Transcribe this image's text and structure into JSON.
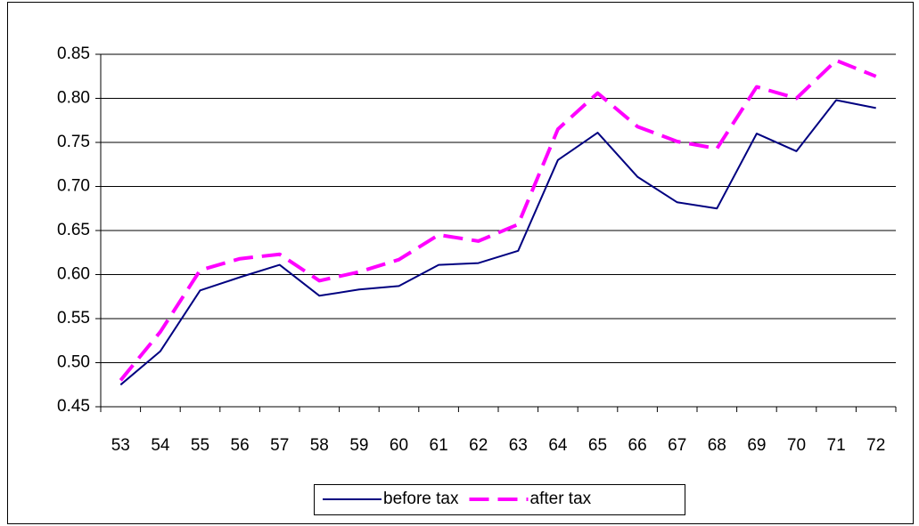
{
  "chart_data": {
    "type": "line",
    "categories": [
      "53",
      "54",
      "55",
      "56",
      "57",
      "58",
      "59",
      "60",
      "61",
      "62",
      "63",
      "64",
      "65",
      "66",
      "67",
      "68",
      "69",
      "70",
      "71",
      "72"
    ],
    "series": [
      {
        "name": "before tax",
        "color": "#000080",
        "dash": false,
        "values": [
          0.475,
          0.513,
          0.582,
          0.597,
          0.611,
          0.576,
          0.583,
          0.587,
          0.611,
          0.613,
          0.627,
          0.73,
          0.761,
          0.711,
          0.682,
          0.675,
          0.76,
          0.74,
          0.798,
          0.789
        ]
      },
      {
        "name": "after tax",
        "color": "#ff00ff",
        "dash": true,
        "values": [
          0.48,
          0.535,
          0.605,
          0.618,
          0.623,
          0.593,
          0.603,
          0.617,
          0.645,
          0.638,
          0.657,
          0.765,
          0.806,
          0.768,
          0.751,
          0.743,
          0.813,
          0.8,
          0.843,
          0.825
        ]
      }
    ],
    "ylim": [
      0.45,
      0.85
    ],
    "yticks": [
      0.45,
      {
        "value": 0.5,
        "label": "0.50"
      },
      0.55,
      {
        "value": 0.6,
        "label": "0.60"
      },
      0.65,
      {
        "value": 0.7,
        "label": "0.70"
      },
      0.75,
      {
        "value": 0.8,
        "label": "0.80"
      },
      0.85
    ],
    "grid": true,
    "legend": "bottom"
  }
}
